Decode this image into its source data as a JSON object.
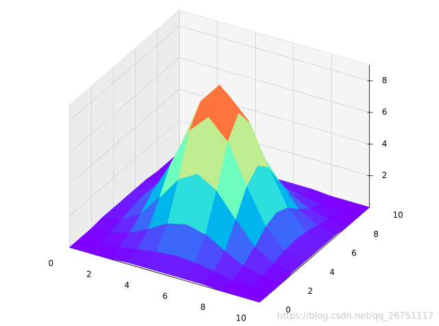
{
  "chart_data": {
    "type": "surface",
    "x": [
      0,
      1,
      2,
      3,
      4,
      5,
      6,
      7,
      8,
      9,
      10
    ],
    "y": [
      0,
      1,
      2,
      3,
      4,
      5,
      6,
      7,
      8,
      9,
      10
    ],
    "z": [
      [
        0.0,
        0.0,
        0.0,
        0.1,
        0.1,
        0.1,
        0.1,
        0.1,
        0.0,
        0.0,
        0.0
      ],
      [
        0.0,
        0.0,
        0.1,
        0.3,
        0.5,
        0.6,
        0.5,
        0.3,
        0.1,
        0.0,
        0.0
      ],
      [
        0.0,
        0.1,
        0.4,
        1.0,
        1.7,
        2.0,
        1.7,
        1.0,
        0.4,
        0.1,
        0.0
      ],
      [
        0.1,
        0.3,
        1.0,
        2.4,
        3.9,
        4.6,
        3.9,
        2.4,
        1.0,
        0.3,
        0.1
      ],
      [
        0.1,
        0.5,
        1.7,
        3.9,
        6.4,
        7.6,
        6.4,
        3.9,
        1.7,
        0.5,
        0.1
      ],
      [
        0.1,
        0.6,
        2.0,
        4.6,
        7.6,
        9.0,
        7.6,
        4.6,
        2.0,
        0.6,
        0.1
      ],
      [
        0.1,
        0.5,
        1.7,
        3.9,
        6.4,
        7.6,
        6.4,
        3.9,
        1.7,
        0.5,
        0.1
      ],
      [
        0.1,
        0.3,
        1.0,
        2.4,
        3.9,
        4.6,
        3.9,
        2.4,
        1.0,
        0.3,
        0.1
      ],
      [
        0.0,
        0.1,
        0.4,
        1.0,
        1.7,
        2.0,
        1.7,
        1.0,
        0.4,
        0.1,
        0.0
      ],
      [
        0.0,
        0.0,
        0.1,
        0.3,
        0.5,
        0.6,
        0.5,
        0.3,
        0.1,
        0.0,
        0.0
      ],
      [
        0.0,
        0.0,
        0.0,
        0.1,
        0.1,
        0.1,
        0.1,
        0.1,
        0.0,
        0.0,
        0.0
      ]
    ],
    "xlim": [
      0,
      10
    ],
    "ylim": [
      0,
      10
    ],
    "zlim": [
      0,
      9
    ],
    "xticks": [
      0,
      2,
      4,
      6,
      8,
      10
    ],
    "yticks": [
      0,
      2,
      4,
      6,
      8,
      10
    ],
    "zticks": [
      2,
      4,
      6,
      8
    ],
    "colormap": "rainbow",
    "grid": true,
    "watermark": "https://blog.csdn.net/qq_26751117"
  }
}
